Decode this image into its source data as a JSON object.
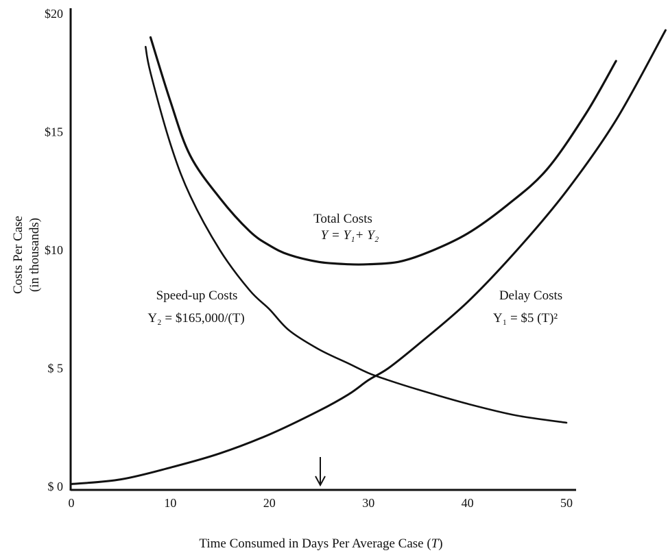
{
  "chart_data": {
    "type": "line",
    "title": "",
    "xlabel": "Time Consumed in Days Per Average Case (T)",
    "xlabel_parts": [
      "Time Consumed in Days Per Average Case (",
      "T",
      ")"
    ],
    "ylabel": [
      "Costs Per Case",
      "(in thousands)"
    ],
    "xlim": [
      0,
      60
    ],
    "ylim": [
      0,
      20
    ],
    "x_ticks": [
      0,
      10,
      20,
      30,
      40,
      50
    ],
    "x_tick_labels": [
      "0",
      "10",
      "20",
      "30",
      "40",
      "50"
    ],
    "y_ticks": [
      0,
      5,
      10,
      15,
      20
    ],
    "y_tick_labels": [
      "$ 0",
      "$ 5",
      "$10",
      "$15",
      "$20"
    ],
    "grid": false,
    "series": [
      {
        "key": "total",
        "label_lines": [
          "Total Costs",
          "Y = Y₁+ Y₂"
        ],
        "x": [
          8,
          10,
          12,
          15,
          18,
          20,
          22,
          25,
          28,
          30,
          33,
          36,
          40,
          44,
          48,
          52,
          55
        ],
        "y": [
          19.0,
          16.3,
          14.0,
          12.2,
          10.8,
          10.2,
          9.8,
          9.5,
          9.4,
          9.4,
          9.5,
          9.9,
          10.7,
          11.9,
          13.4,
          15.8,
          18.0
        ]
      },
      {
        "key": "speedup",
        "label_lines": [
          "Speed-up Costs",
          "Y₂ = $165,000/(T)"
        ],
        "x": [
          7.5,
          8,
          10,
          12,
          15,
          18,
          20,
          22,
          25,
          28,
          30,
          32,
          35,
          40,
          45,
          50
        ],
        "y": [
          18.6,
          17.5,
          14.5,
          12.3,
          10.0,
          8.3,
          7.5,
          6.6,
          5.8,
          5.2,
          4.8,
          4.5,
          4.1,
          3.5,
          3.0,
          2.7
        ]
      },
      {
        "key": "delay",
        "label_lines": [
          "Delay Costs",
          "Y₁ = $5 (T)²"
        ],
        "x": [
          0,
          5,
          10,
          15,
          20,
          25,
          28,
          30,
          32,
          35,
          40,
          45,
          50,
          55,
          60
        ],
        "y": [
          0.1,
          0.3,
          0.8,
          1.4,
          2.2,
          3.2,
          3.9,
          4.5,
          5.0,
          6.0,
          7.8,
          10.0,
          12.5,
          15.5,
          19.3
        ]
      }
    ],
    "annotations": [
      {
        "type": "arrow",
        "x": 25,
        "direction": "down"
      }
    ]
  }
}
